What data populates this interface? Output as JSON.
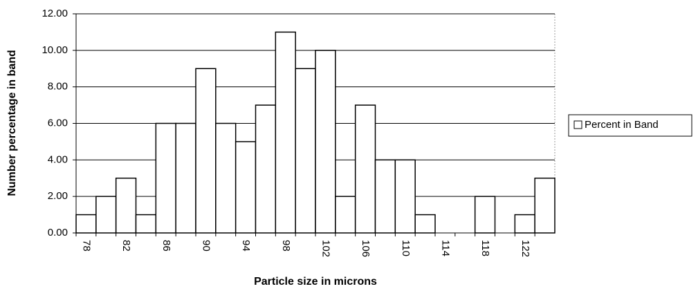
{
  "chart_data": {
    "type": "bar",
    "x_label": "Particle size in microns",
    "y_label": "Number percentage in band",
    "categories": [
      "78",
      null,
      "82",
      null,
      "86",
      null,
      "90",
      null,
      "94",
      null,
      "98",
      null,
      "102",
      null,
      "106",
      null,
      "110",
      null,
      "114",
      null,
      "118",
      null,
      "122",
      null
    ],
    "series": [
      {
        "name": "Percent in Band",
        "color": "#ffffff",
        "values": [
          1,
          2,
          3,
          1,
          6,
          6,
          9,
          6,
          5,
          7,
          11,
          9,
          10,
          2,
          7,
          4,
          4,
          1,
          0,
          0,
          2,
          0,
          1,
          3
        ]
      }
    ],
    "ylim": [
      0,
      12
    ],
    "yticks": [
      {
        "value": 0,
        "label": "0.00"
      },
      {
        "value": 2,
        "label": "2.00"
      },
      {
        "value": 4,
        "label": "4.00"
      },
      {
        "value": 6,
        "label": "6.00"
      },
      {
        "value": 8,
        "label": "8.00"
      },
      {
        "value": 10,
        "label": "10.00"
      },
      {
        "value": 12,
        "label": "12.00"
      }
    ],
    "grid": true,
    "legend": "right"
  }
}
